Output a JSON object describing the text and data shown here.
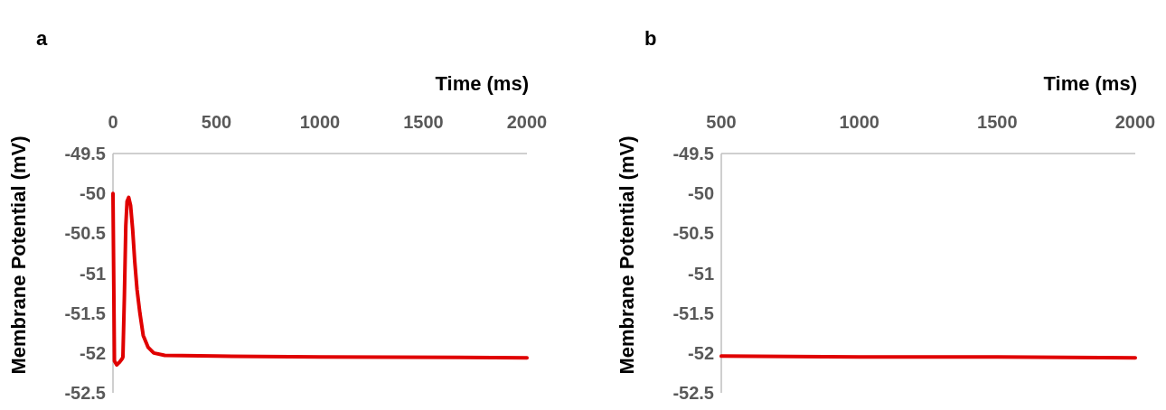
{
  "chart_data": [
    {
      "type": "line",
      "title": "a",
      "xlabel": "Time (ms)",
      "ylabel": "Membrane Potential (mV)",
      "xlim": [
        0,
        2000
      ],
      "xticks": [
        0,
        500,
        1000,
        1500,
        2000
      ],
      "ylim": [
        -52.5,
        -49.5
      ],
      "yticks": [
        -49.5,
        -50,
        -50.5,
        -51,
        -51.5,
        -52,
        -52.5
      ],
      "marker": "none",
      "line_style": "solid",
      "series": [
        {
          "color": "#e00000",
          "x": [
            0,
            7,
            18,
            30,
            45,
            48,
            55,
            62,
            68,
            76,
            85,
            95,
            105,
            116,
            130,
            146,
            170,
            197,
            250,
            500,
            1000,
            2000
          ],
          "values": [
            -50,
            -52.1,
            -52.15,
            -52.12,
            -52.07,
            -52.05,
            -51.3,
            -50.4,
            -50.1,
            -50.05,
            -50.15,
            -50.45,
            -50.85,
            -51.2,
            -51.5,
            -51.78,
            -51.93,
            -52.0,
            -52.03,
            -52.04,
            -52.05,
            -52.06
          ]
        }
      ]
    },
    {
      "type": "line",
      "title": "b",
      "xlabel": "Time (ms)",
      "ylabel": "Membrane Potential (mV)",
      "xlim": [
        500,
        2000
      ],
      "xticks": [
        500,
        1000,
        1500,
        2000
      ],
      "ylim": [
        -52.5,
        -49.5
      ],
      "yticks": [
        -49.5,
        -50,
        -50.5,
        -51,
        -51.5,
        -52,
        -52.5
      ],
      "marker": "none",
      "line_style": "solid",
      "series": [
        {
          "color": "#e00000",
          "x": [
            500,
            1000,
            1500,
            2000
          ],
          "values": [
            -52.04,
            -52.05,
            -52.05,
            -52.06
          ]
        }
      ]
    }
  ]
}
